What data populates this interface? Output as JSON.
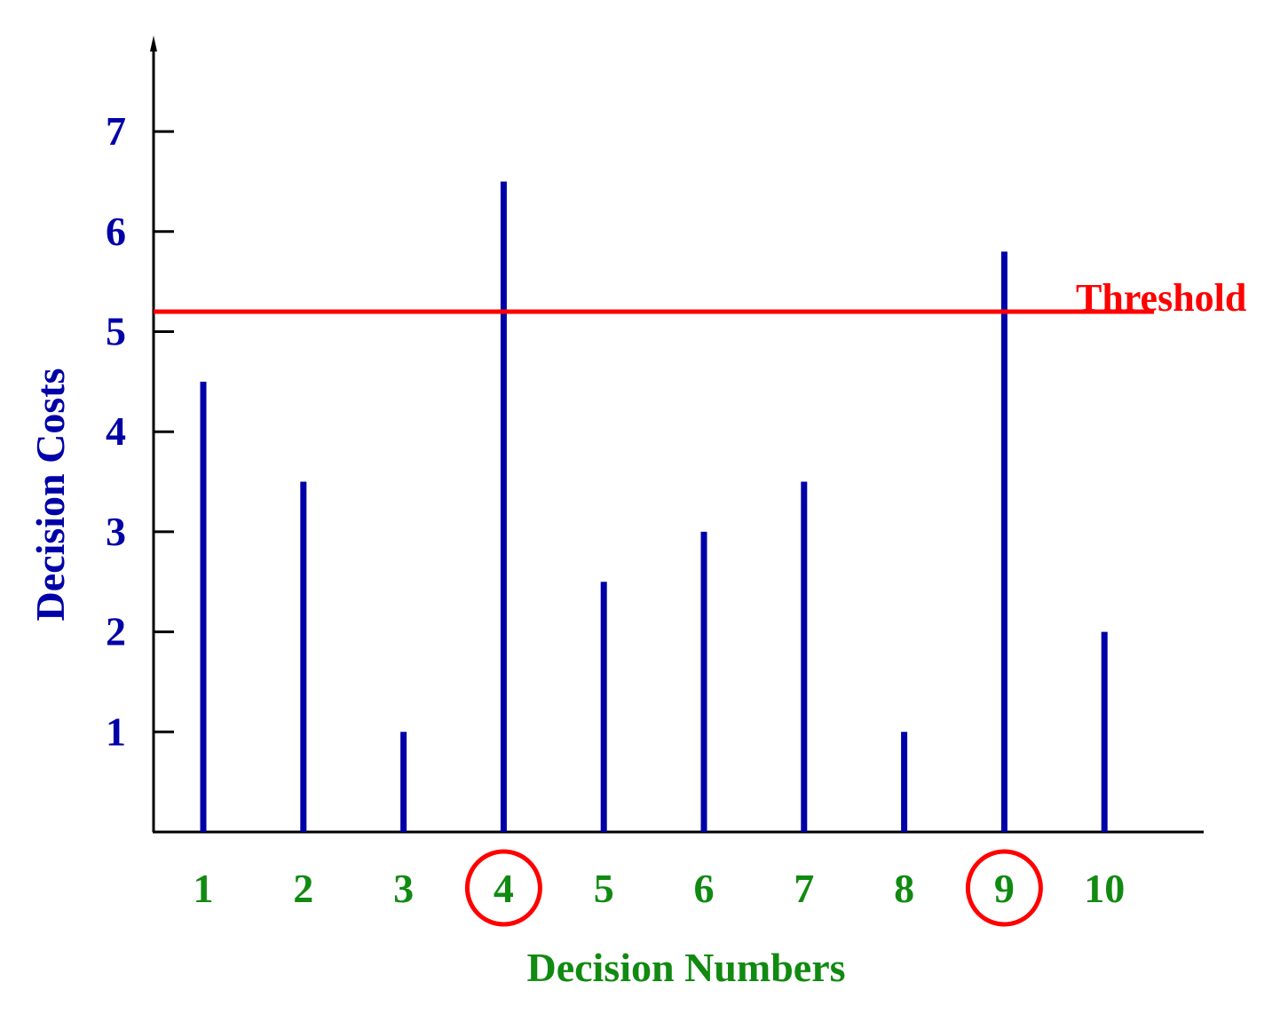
{
  "colors": {
    "axis": "#000000",
    "bars": "#0000a8",
    "y_ticks": "#0000a8",
    "x_ticks": "#118a11",
    "threshold": "#ff0000",
    "highlight_circle": "#ff0000"
  },
  "chart_data": {
    "type": "bar",
    "categories": [
      "1",
      "2",
      "3",
      "4",
      "5",
      "6",
      "7",
      "8",
      "9",
      "10"
    ],
    "values": [
      4.5,
      3.5,
      1,
      6.5,
      2.5,
      3,
      3.5,
      1,
      5.8,
      2
    ],
    "xlabel": "Decision Numbers",
    "ylabel": "Decision Costs",
    "yticks": [
      1,
      2,
      3,
      4,
      5,
      6,
      7
    ],
    "ylim": [
      0,
      7.9
    ],
    "threshold": {
      "value": 5.2,
      "label": "Threshold"
    },
    "highlighted_categories": [
      "4",
      "9"
    ],
    "grid": false,
    "legend": "none"
  }
}
